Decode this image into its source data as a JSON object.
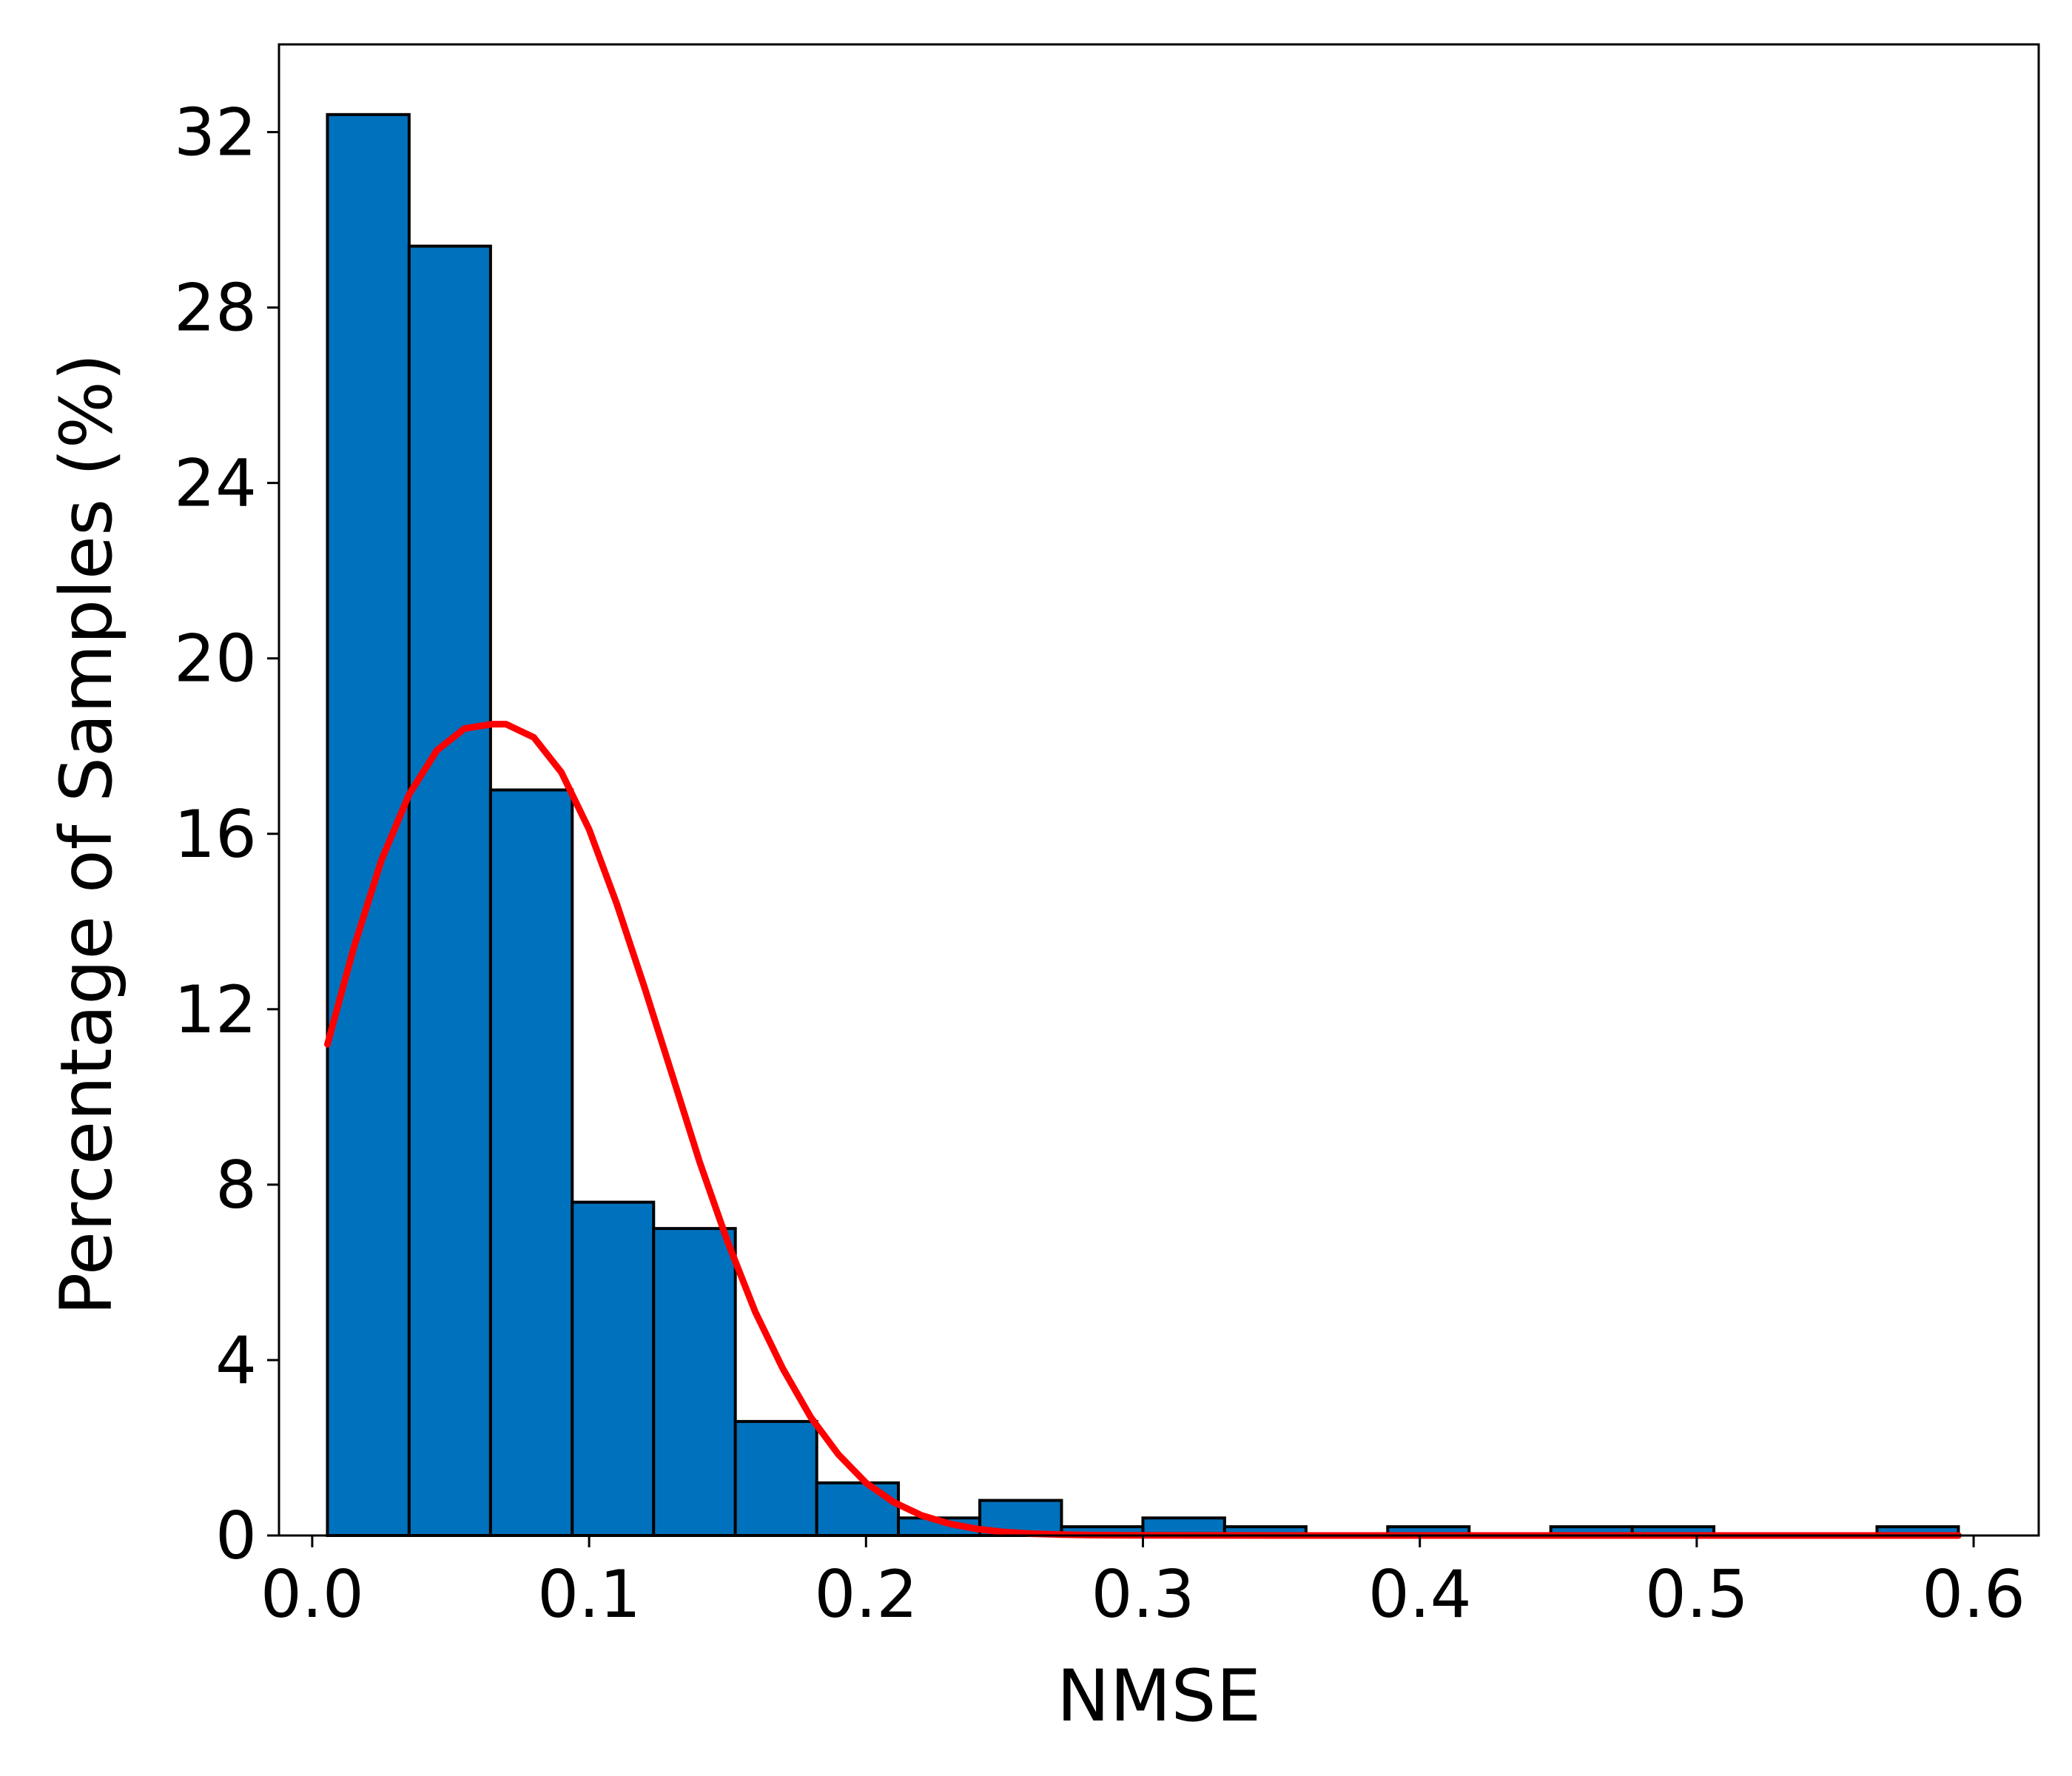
{
  "chart_data": {
    "type": "bar",
    "title": "",
    "xlabel": "NMSE",
    "ylabel": "Percentage of Samples (%)",
    "xlim": [
      -0.012,
      0.6235
    ],
    "ylim": [
      0,
      34.0
    ],
    "xticks": [
      0.0,
      0.1,
      0.2,
      0.3,
      0.4,
      0.5,
      0.6
    ],
    "xtick_labels": [
      "0.0",
      "0.1",
      "0.2",
      "0.3",
      "0.4",
      "0.5",
      "0.6"
    ],
    "yticks": [
      0,
      4,
      8,
      12,
      16,
      20,
      24,
      28,
      32
    ],
    "ytick_labels": [
      "0",
      "4",
      "8",
      "12",
      "16",
      "20",
      "24",
      "28",
      "32"
    ],
    "grid": false,
    "bar_color": "#0072BD",
    "bar_edge_color": "#000000",
    "fit_color": "#FF0000",
    "bins": [
      {
        "x0": 0.0055,
        "x1": 0.035,
        "value": 32.4
      },
      {
        "x0": 0.035,
        "x1": 0.0644,
        "value": 29.4
      },
      {
        "x0": 0.0644,
        "x1": 0.0939,
        "value": 17.0
      },
      {
        "x0": 0.0939,
        "x1": 0.1233,
        "value": 7.6
      },
      {
        "x0": 0.1233,
        "x1": 0.1528,
        "value": 7.0
      },
      {
        "x0": 0.1528,
        "x1": 0.1822,
        "value": 2.6
      },
      {
        "x0": 0.1822,
        "x1": 0.2117,
        "value": 1.2
      },
      {
        "x0": 0.2117,
        "x1": 0.2411,
        "value": 0.4
      },
      {
        "x0": 0.2411,
        "x1": 0.2706,
        "value": 0.8
      },
      {
        "x0": 0.2706,
        "x1": 0.3,
        "value": 0.2
      },
      {
        "x0": 0.3,
        "x1": 0.3295,
        "value": 0.4
      },
      {
        "x0": 0.3295,
        "x1": 0.3589,
        "value": 0.2
      },
      {
        "x0": 0.3589,
        "x1": 0.3884,
        "value": 0.0
      },
      {
        "x0": 0.3884,
        "x1": 0.4178,
        "value": 0.2
      },
      {
        "x0": 0.4178,
        "x1": 0.4473,
        "value": 0.0
      },
      {
        "x0": 0.4473,
        "x1": 0.4767,
        "value": 0.2
      },
      {
        "x0": 0.4767,
        "x1": 0.5062,
        "value": 0.2
      },
      {
        "x0": 0.5062,
        "x1": 0.5356,
        "value": 0.0
      },
      {
        "x0": 0.5356,
        "x1": 0.5651,
        "value": 0.0
      },
      {
        "x0": 0.5651,
        "x1": 0.5945,
        "value": 0.2
      }
    ],
    "fit_curve": {
      "name": "",
      "x": [
        0.0055,
        0.015,
        0.025,
        0.035,
        0.045,
        0.055,
        0.065,
        0.07,
        0.08,
        0.09,
        0.1,
        0.11,
        0.12,
        0.13,
        0.14,
        0.15,
        0.16,
        0.17,
        0.18,
        0.19,
        0.2,
        0.21,
        0.22,
        0.23,
        0.24,
        0.25,
        0.26,
        0.27,
        0.28,
        0.3,
        0.32,
        0.35,
        0.4,
        0.45,
        0.5,
        0.55,
        0.5945
      ],
      "y": [
        11.2,
        13.4,
        15.4,
        16.9,
        17.9,
        18.4,
        18.5,
        18.5,
        18.2,
        17.4,
        16.1,
        14.4,
        12.5,
        10.5,
        8.5,
        6.7,
        5.1,
        3.8,
        2.7,
        1.85,
        1.2,
        0.76,
        0.46,
        0.27,
        0.15,
        0.08,
        0.04,
        0.02,
        0.01,
        0.003,
        0.001,
        0.0,
        0.0,
        0.0,
        0.0,
        0.0,
        0.0
      ]
    }
  }
}
